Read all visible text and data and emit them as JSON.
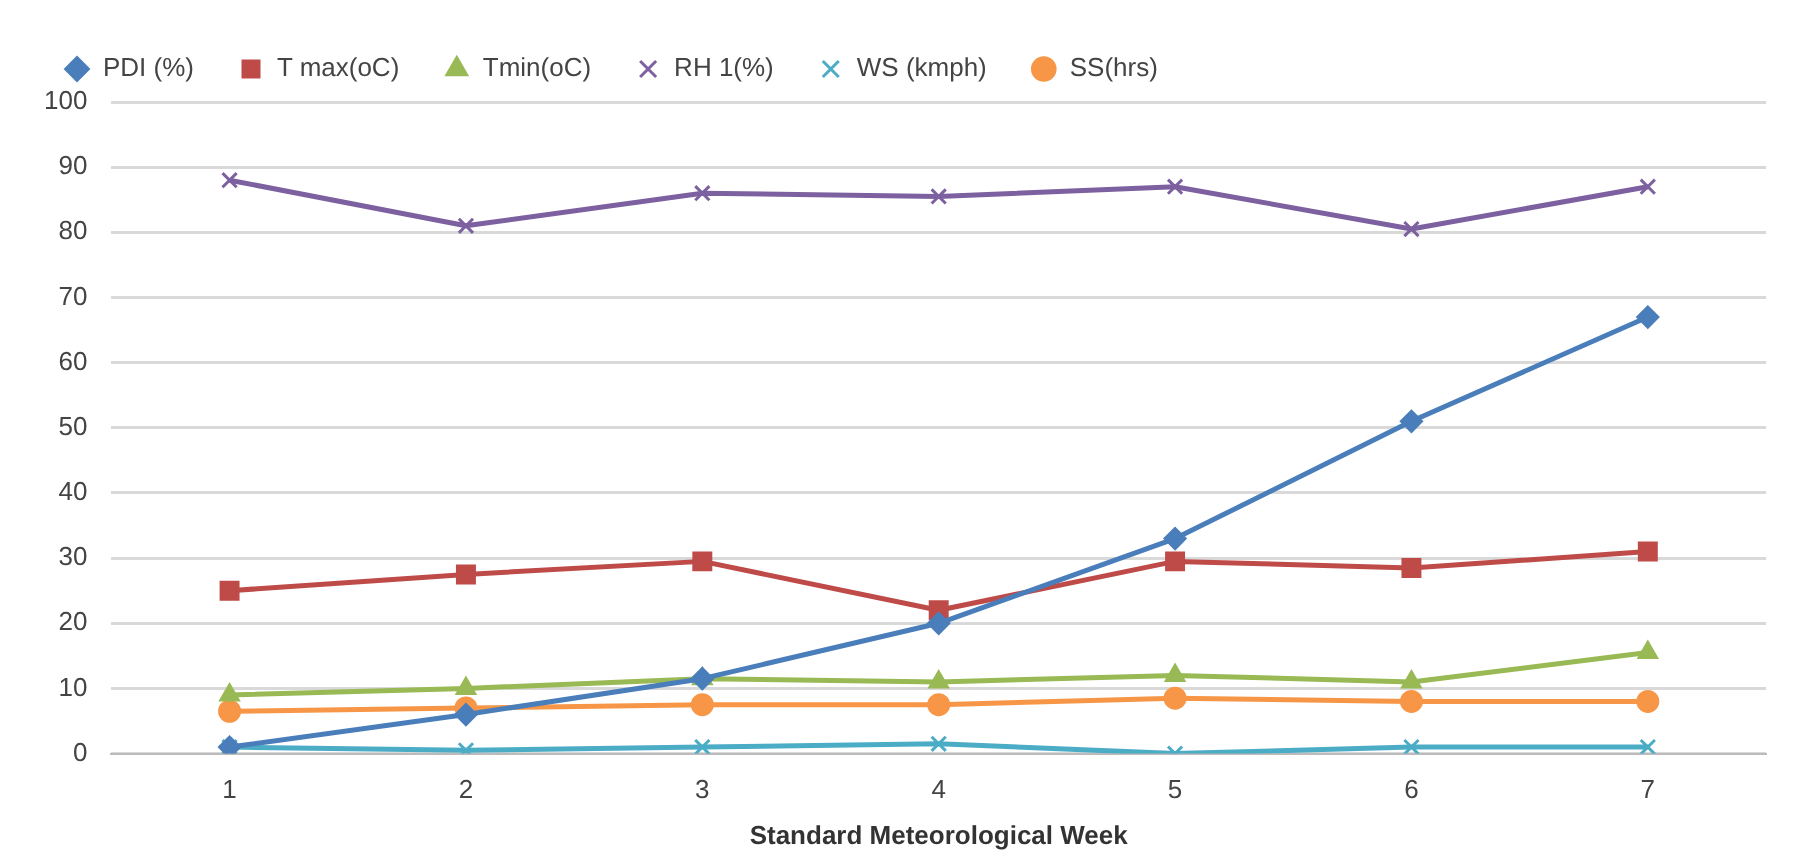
{
  "chart_data": {
    "type": "line",
    "xlabel": "Standard Meteorological Week",
    "categories": [
      "1",
      "2",
      "3",
      "4",
      "5",
      "6",
      "7"
    ],
    "series": [
      {
        "name": "PDI (%)",
        "color": "#4a7ebb",
        "marker": "diamond",
        "values": [
          1,
          6,
          11.5,
          20,
          33,
          51,
          67
        ]
      },
      {
        "name": "T max(oC)",
        "color": "#be4b48",
        "marker": "square",
        "values": [
          25,
          27.5,
          29.5,
          22,
          29.5,
          28.5,
          31
        ]
      },
      {
        "name": "Tmin(oC)",
        "color": "#98b954",
        "marker": "triangle",
        "values": [
          9,
          10,
          11.5,
          11,
          12,
          11,
          15.5
        ]
      },
      {
        "name": "RH 1(%)",
        "color": "#7d60a0",
        "marker": "cross",
        "values": [
          88,
          81,
          86,
          85.5,
          87,
          80.5,
          87
        ]
      },
      {
        "name": "WS (kmph)",
        "color": "#4bacc6",
        "marker": "cross",
        "values": [
          1,
          0.5,
          1,
          1.5,
          0,
          1,
          1
        ]
      },
      {
        "name": "SS(hrs)",
        "color": "#f79646",
        "marker": "circle",
        "values": [
          6.5,
          7,
          7.5,
          7.5,
          8.5,
          8,
          8
        ]
      }
    ],
    "ylim": [
      0,
      100
    ],
    "yticks": [
      0,
      10,
      20,
      30,
      40,
      50,
      60,
      70,
      80,
      90,
      100
    ],
    "grid": "y",
    "legend": "top"
  }
}
